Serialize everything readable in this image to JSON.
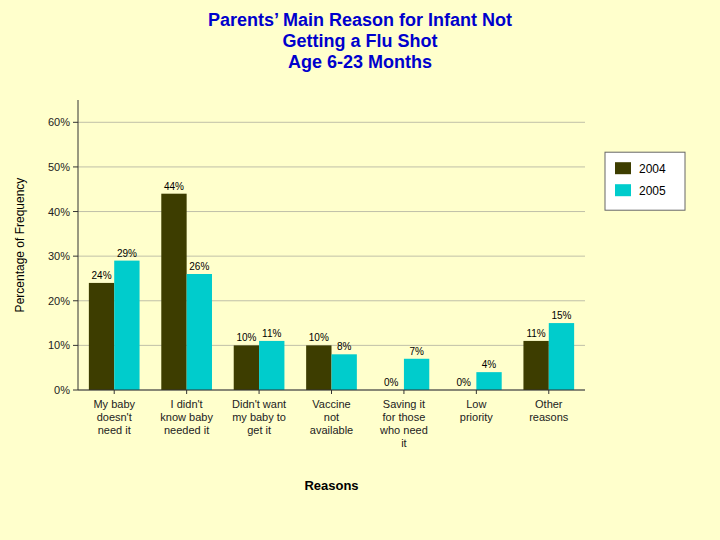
{
  "chart_data": {
    "type": "bar",
    "title": "Parents’ Main Reason for Infant Not\nGetting a Flu Shot\nAge 6-23 Months",
    "xlabel": "Reasons",
    "ylabel": "Percentage of Frequency",
    "categories": [
      "My baby\ndoesn't\nneed it",
      "I didn't\nknow baby\nneeded it",
      "Didn't want\nmy baby to\nget it",
      "Vaccine\nnot\navailable",
      "Saving it\nfor those\nwho need\nit",
      "Low\npriority",
      "Other\nreasons"
    ],
    "series": [
      {
        "name": "2004",
        "color": "#3d3d00",
        "values": [
          24,
          44,
          10,
          10,
          0,
          0,
          11
        ],
        "value_labels": [
          "24%",
          "44%",
          "10%",
          "10%",
          "0%",
          "0%",
          "11%"
        ]
      },
      {
        "name": "2005",
        "color": "#00cccc",
        "values": [
          29,
          26,
          11,
          8,
          7,
          4,
          15
        ],
        "value_labels": [
          "29%",
          "26%",
          "11%",
          "8%",
          "7%",
          "4%",
          "15%"
        ]
      }
    ],
    "ylim": [
      0,
      65
    ],
    "yticks": [
      {
        "value": 0,
        "label": "0%"
      },
      {
        "value": 10,
        "label": "10%"
      },
      {
        "value": 20,
        "label": "20%"
      },
      {
        "value": 30,
        "label": "30%"
      },
      {
        "value": 40,
        "label": "40%"
      },
      {
        "value": 50,
        "label": "50%"
      },
      {
        "value": 60,
        "label": "60%"
      }
    ],
    "grid": true,
    "legend": "right",
    "data_labels": true
  }
}
